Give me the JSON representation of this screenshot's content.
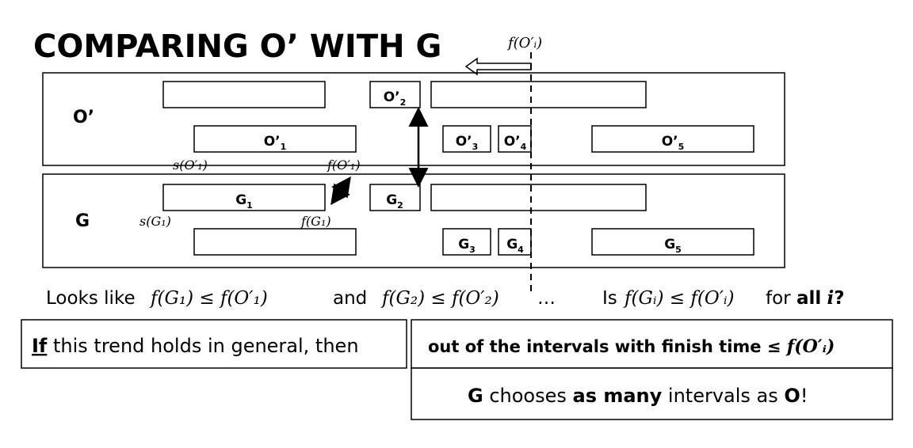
{
  "title": "COMPARING O’ WITH G",
  "marker": {
    "label": "f(O′ᵢ)"
  },
  "rows": {
    "o_label": "O’",
    "g_label": "G"
  },
  "o_intervals": [
    {
      "label": "",
      "sub": ""
    },
    {
      "label": "O’",
      "sub": "2"
    },
    {
      "label": "",
      "sub": ""
    },
    {
      "label": "O’",
      "sub": "1"
    },
    {
      "label": "O’",
      "sub": "3"
    },
    {
      "label": "O’",
      "sub": "4"
    },
    {
      "label": "O’",
      "sub": "5"
    }
  ],
  "g_intervals": [
    {
      "label": "G",
      "sub": "1"
    },
    {
      "label": "G",
      "sub": "2"
    },
    {
      "label": "",
      "sub": ""
    },
    {
      "label": "",
      "sub": ""
    },
    {
      "label": "G",
      "sub": "3"
    },
    {
      "label": "G",
      "sub": "4"
    },
    {
      "label": "G",
      "sub": "5"
    }
  ],
  "annotations": {
    "s_o1": "s(O′₁)",
    "f_o1": "f(O′₁)",
    "s_g1": "s(G₁)",
    "f_g1": "f(G₁)"
  },
  "observation": {
    "looks_like": "Looks like",
    "eq1": "f(G₁) ≤ f(O′₁)",
    "and": "and",
    "eq2": "f(G₂) ≤ f(O′₂)",
    "ellipsis": "…",
    "is": "Is",
    "eq3": "f(Gᵢ) ≤ f(O′ᵢ)",
    "for": "for",
    "all": "all",
    "i": "i",
    "q": "?"
  },
  "box_if": {
    "if": "If",
    "rest": " this trend holds in general, then"
  },
  "box_out": {
    "text": "out of the intervals with finish time ≤ ",
    "math": "f(O′ᵢ)"
  },
  "box_g": {
    "g": "G",
    "t1": " chooses ",
    "many": "as many",
    "t2": " intervals as ",
    "o": "O",
    "t3": "!"
  }
}
